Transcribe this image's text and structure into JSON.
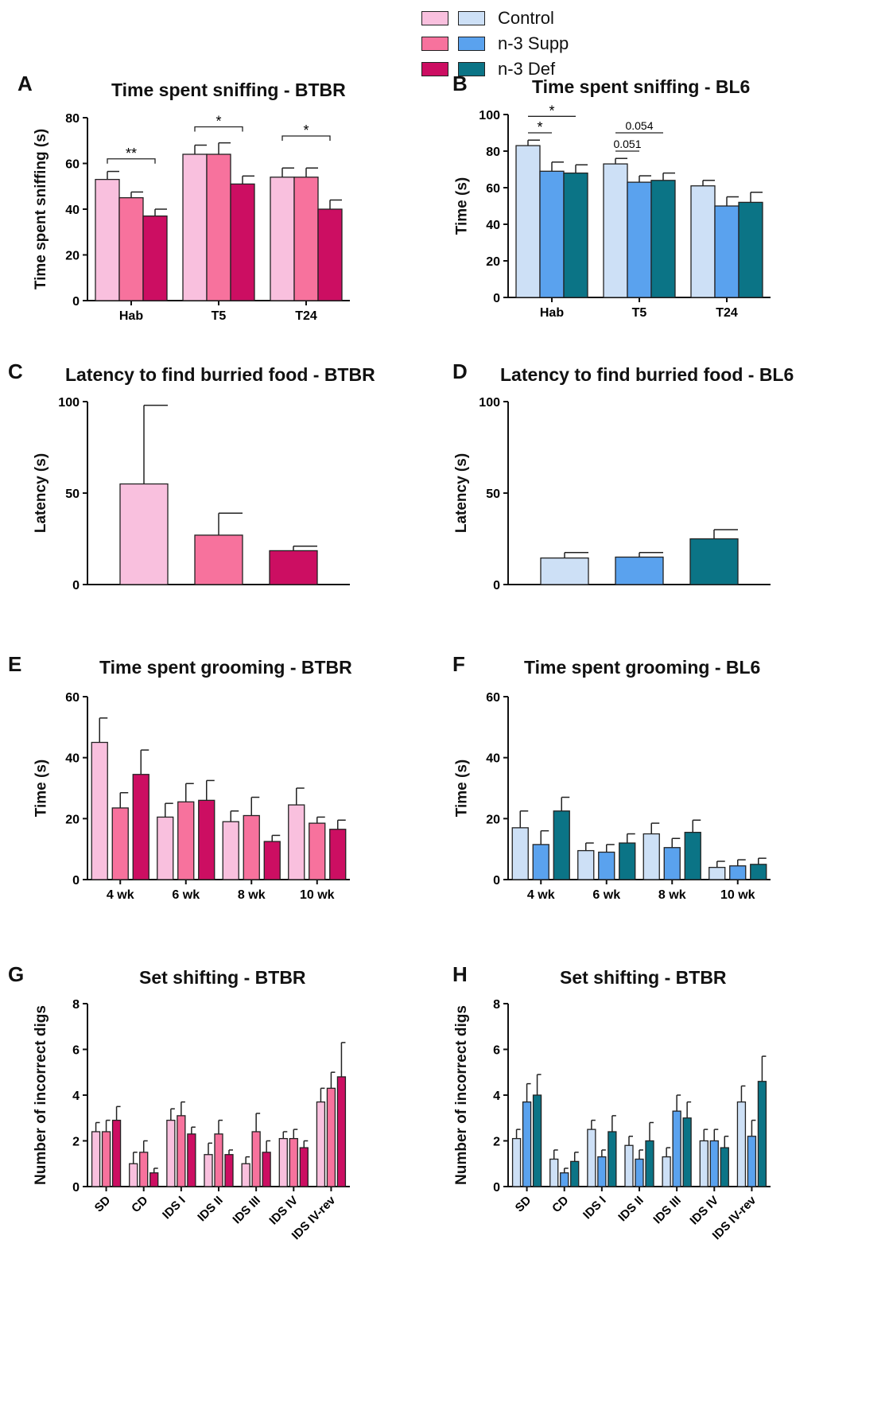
{
  "legend": {
    "entries": [
      {
        "label": "Control",
        "color_btbr": "#f9c0de",
        "color_bl6": "#cde0f6"
      },
      {
        "label": "n-3 Supp",
        "color_btbr": "#f7729d",
        "color_bl6": "#5aa2ee"
      },
      {
        "label": "n-3 Def",
        "color_btbr": "#cc0e62",
        "color_bl6": "#0b7486"
      }
    ]
  },
  "chart_data": [
    {
      "panel": "A",
      "type": "bar",
      "title": "Time spent sniffing -  BTBR",
      "ylabel": "Time spent sniffing (s)",
      "ylim": [
        0,
        80
      ],
      "yticks": [
        0,
        20,
        40,
        60,
        80
      ],
      "categories": [
        "Hab",
        "T5",
        "T24"
      ],
      "series": [
        {
          "name": "Control",
          "values": [
            53,
            64,
            54
          ],
          "errors": [
            3.5,
            4,
            4
          ]
        },
        {
          "name": "n-3 Supp",
          "values": [
            45,
            64,
            54
          ],
          "errors": [
            2.5,
            5,
            4
          ]
        },
        {
          "name": "n-3 Def",
          "values": [
            37,
            51,
            40
          ],
          "errors": [
            3,
            3.5,
            4
          ]
        }
      ],
      "annotations": [
        {
          "text": "**",
          "group": 0,
          "from": 0,
          "to": 2,
          "y": 62
        },
        {
          "text": "*",
          "group": 1,
          "from": 0,
          "to": 2,
          "y": 76
        },
        {
          "text": "*",
          "group": 2,
          "from": 0,
          "to": 2,
          "y": 72
        }
      ]
    },
    {
      "panel": "B",
      "type": "bar",
      "title": "Time spent sniffing - BL6",
      "ylabel": "Time (s)",
      "ylim": [
        0,
        100
      ],
      "yticks": [
        0,
        20,
        40,
        60,
        80,
        100
      ],
      "categories": [
        "Hab",
        "T5",
        "T24"
      ],
      "series": [
        {
          "name": "Control",
          "values": [
            83,
            73,
            61
          ],
          "errors": [
            3,
            3,
            3
          ]
        },
        {
          "name": "n-3 Supp",
          "values": [
            69,
            63,
            50
          ],
          "errors": [
            5,
            3.5,
            5
          ]
        },
        {
          "name": "n-3 Def",
          "values": [
            68,
            64,
            52
          ],
          "errors": [
            4.5,
            4,
            5.5
          ]
        }
      ],
      "annotations": [
        {
          "text": "*",
          "group": 0,
          "from": 0,
          "to": 1,
          "y": 90
        },
        {
          "text": "*",
          "group": 0,
          "from": 0,
          "to": 2,
          "y": 99
        },
        {
          "text": "0.051",
          "group": 1,
          "from": 0,
          "to": 1,
          "y": 80
        },
        {
          "text": "0.054",
          "group": 1,
          "from": 0,
          "to": 2,
          "y": 90
        }
      ]
    },
    {
      "panel": "C",
      "type": "bar",
      "title": "Latency to find burried food -  BTBR",
      "ylabel": "Latency (s)",
      "ylim": [
        0,
        100
      ],
      "yticks": [
        0,
        50,
        100
      ],
      "categories": [
        ""
      ],
      "series": [
        {
          "name": "Control",
          "values": [
            55
          ],
          "errors": [
            43
          ]
        },
        {
          "name": "n-3 Supp",
          "values": [
            27
          ],
          "errors": [
            12
          ]
        },
        {
          "name": "n-3 Def",
          "values": [
            18.5
          ],
          "errors": [
            2.5
          ]
        }
      ]
    },
    {
      "panel": "D",
      "type": "bar",
      "title": "Latency to find burried food - BL6",
      "ylabel": "Latency (s)",
      "ylim": [
        0,
        100
      ],
      "yticks": [
        0,
        50,
        100
      ],
      "categories": [
        ""
      ],
      "series": [
        {
          "name": "Control",
          "values": [
            14.5
          ],
          "errors": [
            3
          ]
        },
        {
          "name": "n-3 Supp",
          "values": [
            15
          ],
          "errors": [
            2.5
          ]
        },
        {
          "name": "n-3 Def",
          "values": [
            25
          ],
          "errors": [
            5
          ]
        }
      ]
    },
    {
      "panel": "E",
      "type": "bar",
      "title": "Time spent grooming - BTBR",
      "ylabel": "Time (s)",
      "ylim": [
        0,
        60
      ],
      "yticks": [
        0,
        20,
        40,
        60
      ],
      "categories": [
        "4 wk",
        "6 wk",
        "8 wk",
        "10 wk"
      ],
      "series": [
        {
          "name": "Control",
          "values": [
            45,
            20.5,
            19,
            24.5
          ],
          "errors": [
            8,
            4.5,
            3.5,
            5.5
          ]
        },
        {
          "name": "n-3 Supp",
          "values": [
            23.5,
            25.5,
            21,
            18.5
          ],
          "errors": [
            5,
            6,
            6,
            2
          ]
        },
        {
          "name": "n-3 Def",
          "values": [
            34.5,
            26,
            12.5,
            16.5
          ],
          "errors": [
            8,
            6.5,
            2,
            3
          ]
        }
      ]
    },
    {
      "panel": "F",
      "type": "bar",
      "title": "Time spent grooming  -  BL6",
      "ylabel": "Time (s)",
      "ylim": [
        0,
        60
      ],
      "yticks": [
        0,
        20,
        40,
        60
      ],
      "categories": [
        "4 wk",
        "6 wk",
        "8 wk",
        "10 wk"
      ],
      "series": [
        {
          "name": "Control",
          "values": [
            17,
            9.5,
            15,
            4
          ],
          "errors": [
            5.5,
            2.5,
            3.5,
            2
          ]
        },
        {
          "name": "n-3 Supp",
          "values": [
            11.5,
            9,
            10.5,
            4.5
          ],
          "errors": [
            4.5,
            2.5,
            3,
            2
          ]
        },
        {
          "name": "n-3 Def",
          "values": [
            22.5,
            12,
            15.5,
            5
          ],
          "errors": [
            4.5,
            3,
            4,
            2
          ]
        }
      ]
    },
    {
      "panel": "G",
      "type": "bar",
      "title": "Set shifting -  BTBR",
      "ylabel": "Number of incorrect digs",
      "ylim": [
        0,
        8
      ],
      "yticks": [
        0,
        2,
        4,
        6,
        8
      ],
      "categories": [
        "SD",
        "CD",
        "IDS I",
        "IDS II",
        "IDS III",
        "IDS IV",
        "IDS IV-rev"
      ],
      "series": [
        {
          "name": "Control",
          "values": [
            2.4,
            1.0,
            2.9,
            1.4,
            1.0,
            2.1,
            3.7
          ],
          "errors": [
            0.4,
            0.5,
            0.5,
            0.5,
            0.3,
            0.3,
            0.6
          ]
        },
        {
          "name": "n-3 Supp",
          "values": [
            2.4,
            1.5,
            3.1,
            2.3,
            2.4,
            2.1,
            4.3
          ],
          "errors": [
            0.5,
            0.5,
            0.6,
            0.6,
            0.8,
            0.4,
            0.7
          ]
        },
        {
          "name": "n-3 Def",
          "values": [
            2.9,
            0.6,
            2.3,
            1.4,
            1.5,
            1.7,
            4.8
          ],
          "errors": [
            0.6,
            0.2,
            0.3,
            0.2,
            0.5,
            0.3,
            1.5
          ]
        }
      ]
    },
    {
      "panel": "H",
      "type": "bar",
      "title": "Set shifting -  BTBR",
      "ylabel": "Number of incorrect digs",
      "ylim": [
        0,
        8
      ],
      "yticks": [
        0,
        2,
        4,
        6,
        8
      ],
      "categories": [
        "SD",
        "CD",
        "IDS I",
        "IDS II",
        "IDS III",
        "IDS IV",
        "IDS IV-rev"
      ],
      "series": [
        {
          "name": "Control",
          "values": [
            2.1,
            1.2,
            2.5,
            1.8,
            1.3,
            2.0,
            3.7
          ],
          "errors": [
            0.4,
            0.4,
            0.4,
            0.4,
            0.4,
            0.5,
            0.7
          ]
        },
        {
          "name": "n-3 Supp",
          "values": [
            3.7,
            0.6,
            1.3,
            1.2,
            3.3,
            2.0,
            2.2
          ],
          "errors": [
            0.8,
            0.2,
            0.3,
            0.4,
            0.7,
            0.5,
            0.7
          ]
        },
        {
          "name": "n-3 Def",
          "values": [
            4.0,
            1.1,
            2.4,
            2.0,
            3.0,
            1.7,
            4.6
          ],
          "errors": [
            0.9,
            0.4,
            0.7,
            0.8,
            0.7,
            0.5,
            1.1
          ]
        }
      ]
    }
  ]
}
